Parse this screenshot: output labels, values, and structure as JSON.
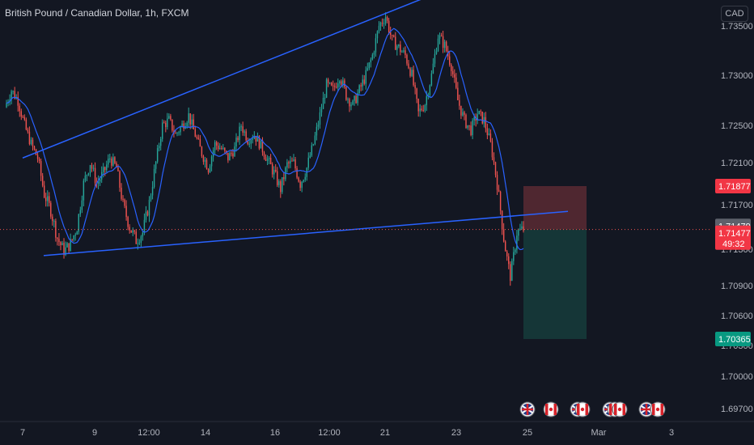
{
  "header": {
    "title": "British Pound / Canadian Dollar, 1h, FXCM",
    "currency": "CAD"
  },
  "chart_data": {
    "type": "candlestick",
    "symbol": "GBPCAD",
    "interval": "1h",
    "source": "FXCM",
    "ylim": [
      1.696,
      1.738
    ],
    "y_ticks": [
      "1.73500",
      "1.73000",
      "1.72500",
      "1.72100",
      "1.71700",
      "1.71300",
      "1.70900",
      "1.70600",
      "1.70300",
      "1.70000",
      "1.69700"
    ],
    "x_ticks": [
      "7",
      "9",
      "12:00",
      "14",
      "16",
      "12:00",
      "21",
      "23",
      "25",
      "Mar",
      "3"
    ],
    "price_tags": {
      "stop": "1.71877",
      "last_close": "1.71479",
      "current": "1.71477",
      "countdown": "49:32",
      "target": "1.70365"
    },
    "trendlines": [
      {
        "name": "upper",
        "from": [
          "7",
          1.7215
        ],
        "to": [
          "21",
          1.7382
        ]
      },
      {
        "name": "lower",
        "from": [
          "7",
          1.7123
        ],
        "to": [
          "25",
          1.7164
        ]
      }
    ],
    "short_position": {
      "entry": 1.71477,
      "stop": 1.71877,
      "target": 1.70365
    },
    "close_path": [
      1.7268,
      1.7285,
      1.7275,
      1.725,
      1.723,
      1.7215,
      1.718,
      1.7165,
      1.714,
      1.7128,
      1.7135,
      1.715,
      1.719,
      1.721,
      1.719,
      1.72,
      1.7215,
      1.7205,
      1.717,
      1.715,
      1.7138,
      1.7145,
      1.7172,
      1.721,
      1.725,
      1.7255,
      1.724,
      1.725,
      1.726,
      1.724,
      1.722,
      1.7205,
      1.723,
      1.7225,
      1.7215,
      1.7225,
      1.725,
      1.7235,
      1.724,
      1.7228,
      1.7213,
      1.72,
      1.7185,
      1.7208,
      1.721,
      1.719,
      1.7205,
      1.723,
      1.726,
      1.729,
      1.7285,
      1.73,
      1.728,
      1.727,
      1.7285,
      1.73,
      1.732,
      1.735,
      1.736,
      1.7335,
      1.7328,
      1.732,
      1.73,
      1.7262,
      1.7272,
      1.73,
      1.734,
      1.733,
      1.731,
      1.7275,
      1.7255,
      1.7245,
      1.7262,
      1.7255,
      1.723,
      1.719,
      1.714,
      1.71,
      1.7145,
      1.7148
    ],
    "event_icons": [
      "uk-flag",
      "canada-flag",
      "uk-flag",
      "canada-flag",
      "uk-flag",
      "canada-flag",
      "canada-flag",
      "uk-flag",
      "canada-flag"
    ],
    "colors": {
      "background": "#131722",
      "up": "#26a69a",
      "down": "#ef5350",
      "moving_average": "#2962ff",
      "trendline": "#2962ff",
      "stop_zone": "#5b2a33",
      "target_zone": "#163a3a",
      "axis_text": "#b2b5be"
    }
  }
}
